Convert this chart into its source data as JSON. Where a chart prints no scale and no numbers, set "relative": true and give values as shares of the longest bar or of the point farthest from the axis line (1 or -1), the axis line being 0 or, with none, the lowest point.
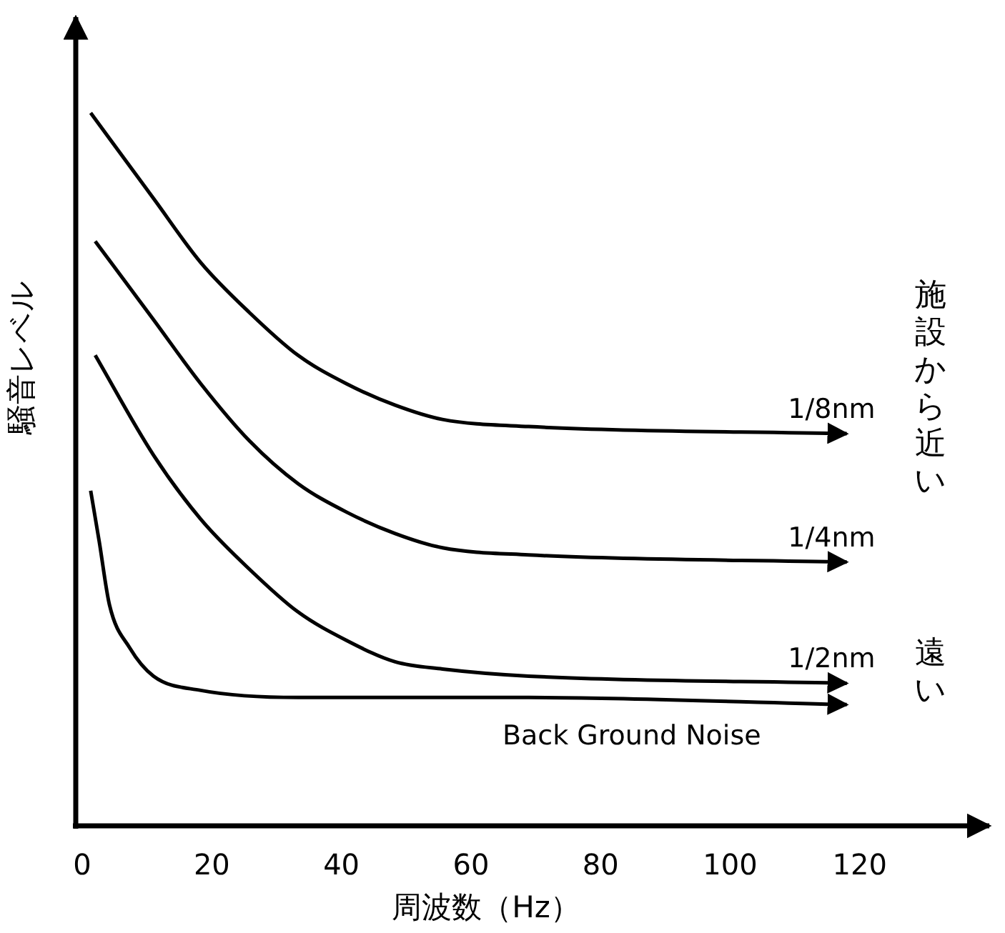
{
  "chart_data": {
    "type": "line",
    "relative": true,
    "xlabel": "周波数（Hz）",
    "ylabel": "騒音レベル",
    "xlim": [
      -1,
      140
    ],
    "xticks": [
      0,
      20,
      40,
      60,
      80,
      100,
      120
    ],
    "annotations": [
      "施設から近い",
      "遠い"
    ],
    "series": [
      {
        "name": "1/8nm",
        "color": "#000000",
        "x": [
          1.3,
          11,
          18.3,
          25.8,
          33.3,
          40.8,
          48.3,
          55.6,
          68.9,
          118
        ],
        "values": [
          1.0,
          0.88,
          0.79,
          0.72,
          0.66,
          0.62,
          0.59,
          0.57,
          0.56,
          0.55
        ]
      },
      {
        "name": "1/4nm",
        "color": "#000000",
        "x": [
          2,
          11,
          18.3,
          25.8,
          33.3,
          40.8,
          48.3,
          55.6,
          68.9,
          118
        ],
        "values": [
          0.82,
          0.71,
          0.62,
          0.54,
          0.48,
          0.44,
          0.41,
          0.39,
          0.38,
          0.37
        ]
      },
      {
        "name": "1/2nm",
        "color": "#000000",
        "x": [
          2,
          11,
          18.3,
          25.8,
          33.3,
          40.8,
          48.3,
          55.6,
          68.9,
          118
        ],
        "values": [
          0.66,
          0.52,
          0.43,
          0.36,
          0.3,
          0.26,
          0.23,
          0.22,
          0.21,
          0.2
        ]
      },
      {
        "name": "Back Ground Noise",
        "color": "#000000",
        "x": [
          1.3,
          2.6,
          4.2,
          7.3,
          11,
          18.3,
          33.3,
          55.6,
          68.9,
          118
        ],
        "values": [
          0.47,
          0.4,
          0.31,
          0.25,
          0.21,
          0.19,
          0.18,
          0.18,
          0.18,
          0.17
        ]
      }
    ]
  }
}
